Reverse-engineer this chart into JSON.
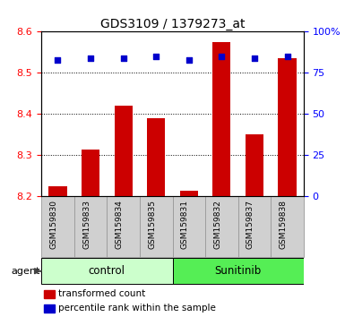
{
  "title": "GDS3109 / 1379273_at",
  "samples": [
    "GSM159830",
    "GSM159833",
    "GSM159834",
    "GSM159835",
    "GSM159831",
    "GSM159832",
    "GSM159837",
    "GSM159838"
  ],
  "transformed_counts": [
    8.225,
    8.315,
    8.42,
    8.39,
    8.215,
    8.575,
    8.35,
    8.535
  ],
  "percentile_ranks": [
    83,
    84,
    84,
    85,
    83,
    85,
    84,
    85
  ],
  "ylim_left": [
    8.2,
    8.6
  ],
  "ylim_right": [
    0,
    100
  ],
  "yticks_left": [
    8.2,
    8.3,
    8.4,
    8.5,
    8.6
  ],
  "yticks_right": [
    0,
    25,
    50,
    75,
    100
  ],
  "bar_color": "#cc0000",
  "dot_color": "#0000cc",
  "bg_color_control": "#ccffcc",
  "bg_color_sunitinib": "#55ee55",
  "sample_bg": "#d0d0d0",
  "sample_border": "#999999",
  "control_indices": [
    0,
    1,
    2,
    3
  ],
  "sunitinib_indices": [
    4,
    5,
    6,
    7
  ],
  "control_label": "control",
  "sunitinib_label": "Sunitinib",
  "agent_label": "agent",
  "legend_bar_label": "transformed count",
  "legend_dot_label": "percentile rank within the sample",
  "bar_width": 0.55,
  "ybase": 8.2
}
